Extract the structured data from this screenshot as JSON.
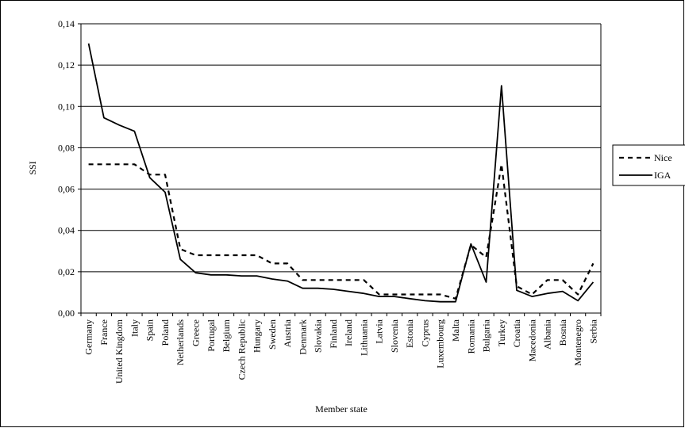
{
  "chart_data": {
    "type": "line",
    "title": "",
    "xlabel": "Member state",
    "ylabel": "SSI",
    "ylim": [
      0,
      0.14
    ],
    "ytick_values": [
      0,
      0.02,
      0.04,
      0.06,
      0.08,
      0.1,
      0.12,
      0.14
    ],
    "ytick_labels": [
      "0,00",
      "0,02",
      "0,04",
      "0,06",
      "0,08",
      "0,10",
      "0,12",
      "0,14"
    ],
    "grid": "horizontal",
    "legend_position": "right",
    "categories": [
      "Germany",
      "France",
      "United Kingdom",
      "Italy",
      "Spain",
      "Poland",
      "Netherlands",
      "Greece",
      "Portugal",
      "Belgium",
      "Czech Republic",
      "Hungary",
      "Sweden",
      "Austria",
      "Denmark",
      "Slovakia",
      "Finland",
      "Ireland",
      "Lithuania",
      "Latvia",
      "Slovenia",
      "Estonia",
      "Cyprus",
      "Luxembourg",
      "Malta",
      "Romania",
      "Bulgaria",
      "Turkey",
      "Croatia",
      "Macedonia",
      "Albania",
      "Bosnia",
      "Montenegro",
      "Serbia"
    ],
    "series": [
      {
        "name": "Nice",
        "style": "dashed",
        "values": [
          0.072,
          0.072,
          0.072,
          0.072,
          0.067,
          0.067,
          0.031,
          0.028,
          0.028,
          0.028,
          0.028,
          0.028,
          0.024,
          0.024,
          0.016,
          0.016,
          0.016,
          0.016,
          0.016,
          0.009,
          0.009,
          0.009,
          0.009,
          0.009,
          0.007,
          0.033,
          0.027,
          0.072,
          0.013,
          0.009,
          0.016,
          0.016,
          0.009,
          0.024
        ]
      },
      {
        "name": "IGA",
        "style": "solid",
        "values": [
          0.1305,
          0.0945,
          0.091,
          0.088,
          0.0655,
          0.0585,
          0.026,
          0.0195,
          0.0185,
          0.0185,
          0.018,
          0.018,
          0.0165,
          0.0155,
          0.012,
          0.012,
          0.0115,
          0.0105,
          0.0095,
          0.008,
          0.008,
          0.007,
          0.006,
          0.0055,
          0.0055,
          0.0335,
          0.015,
          0.11,
          0.011,
          0.008,
          0.0095,
          0.0105,
          0.006,
          0.015
        ]
      }
    ]
  },
  "colors": {
    "line": "#000000",
    "grid": "#000000",
    "background": "#ffffff"
  }
}
